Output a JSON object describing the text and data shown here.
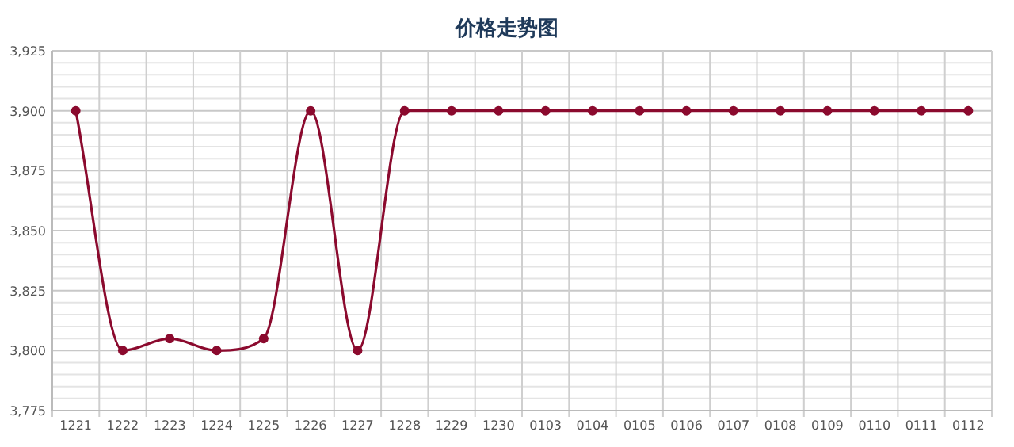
{
  "chart_data": {
    "type": "line",
    "title": "价格走势图",
    "categories": [
      "1221",
      "1222",
      "1223",
      "1224",
      "1225",
      "1226",
      "1227",
      "1228",
      "1229",
      "1230",
      "0103",
      "0104",
      "0105",
      "0106",
      "0107",
      "0108",
      "0109",
      "0110",
      "0111",
      "0112"
    ],
    "series": [
      {
        "color": "#8b0a2e",
        "values": [
          3900,
          3800,
          3805,
          3800,
          3805,
          3900,
          3800,
          3900,
          3900,
          3900,
          3900,
          3900,
          3900,
          3900,
          3900,
          3900,
          3900,
          3900,
          3900,
          3900
        ]
      }
    ],
    "ylim": [
      3775,
      3925
    ],
    "yticks": [
      {
        "value": 3775,
        "label": "3,775"
      },
      {
        "value": 3800,
        "label": "3,800"
      },
      {
        "value": 3825,
        "label": "3,825"
      },
      {
        "value": 3850,
        "label": "3,850"
      },
      {
        "value": 3875,
        "label": "3,875"
      },
      {
        "value": 3900,
        "label": "3,900"
      },
      {
        "value": 3925,
        "label": "3,925"
      }
    ],
    "grid": true,
    "marker": "circle"
  }
}
